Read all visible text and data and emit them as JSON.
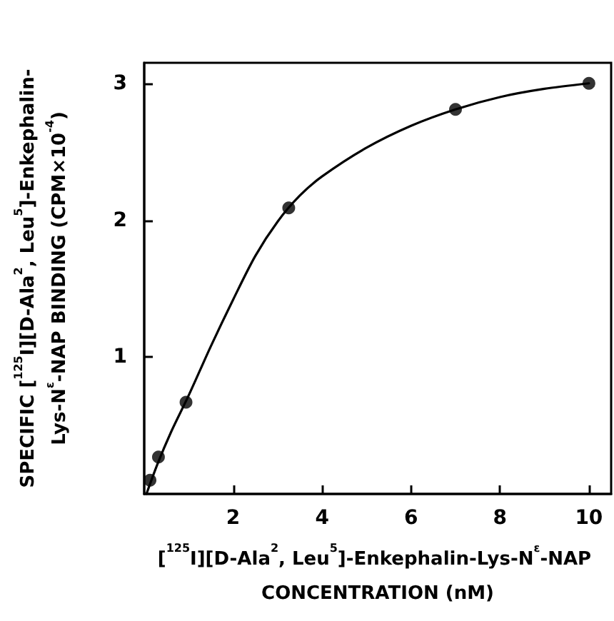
{
  "chart_data": {
    "type": "scatter",
    "xlabel": "[$^{125}$I][D-Ala$^{2}$, Leu$^{5}$]-Enkephalin-Lys-N$^{ε}$-NAP CONCENTRATION (nM)",
    "ylabel": "SPECIFIC [$^{125}$I][D-Ala$^{2}$, Leu$^{5}$]-Enkephalin-Lys-N$^{ε}$-NAP BINDING (CPM×10$^{-4}$)",
    "series": [
      {
        "color": "#000000",
        "marker": "circle",
        "x": [
          0.13,
          0.32,
          0.94,
          3.25,
          7.0,
          10.0
        ],
        "values": [
          0.1,
          0.27,
          0.67,
          2.09,
          2.81,
          3.0
        ]
      },
      {
        "type": "line",
        "marker": "none",
        "color": "#000000",
        "x": [
          0.05,
          0.3,
          0.6,
          1,
          1.5,
          2,
          2.5,
          3,
          3.5,
          4,
          5,
          6,
          7,
          8,
          9,
          10
        ],
        "values": [
          0.0,
          0.22,
          0.45,
          0.72,
          1.08,
          1.42,
          1.74,
          1.99,
          2.18,
          2.32,
          2.53,
          2.69,
          2.81,
          2.9,
          2.96,
          3.0
        ]
      }
    ],
    "xlim": [
      0,
      10.5
    ],
    "xticks": [
      2,
      4,
      6,
      8,
      10
    ],
    "ylim": [
      0,
      3.15
    ],
    "yticks": [
      1,
      2,
      3
    ],
    "grid": false,
    "line_style": "solid"
  }
}
